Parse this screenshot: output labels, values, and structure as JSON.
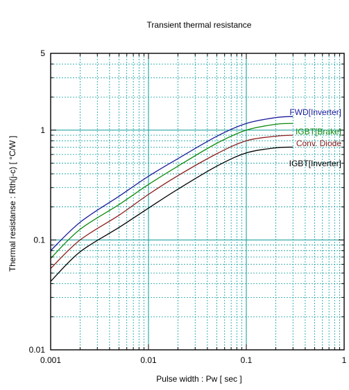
{
  "chart_data": {
    "type": "line",
    "title": "Transient thermal resistance",
    "xlabel": "Pulse width  :  Pw  [ sec ]",
    "ylabel": "Thermal resistanse  :  Rth(j-c)  [ °C/W ]",
    "x_scale": "log",
    "y_scale": "log",
    "xlim": [
      0.001,
      1
    ],
    "ylim": [
      0.01,
      5
    ],
    "grid": true,
    "x_ticks": [
      {
        "value": 0.001,
        "label": "0.001"
      },
      {
        "value": 0.01,
        "label": "0.01"
      },
      {
        "value": 0.1,
        "label": "0.1"
      },
      {
        "value": 1,
        "label": "1"
      }
    ],
    "y_ticks": [
      {
        "value": 0.01,
        "label": "0.01"
      },
      {
        "value": 0.1,
        "label": "0.1"
      },
      {
        "value": 1,
        "label": "1"
      },
      {
        "value": 5,
        "label": "5"
      }
    ],
    "colors": {
      "grid": "#0a9a9a",
      "axes": "#000000"
    },
    "series": [
      {
        "name": "FWD[Inverter]",
        "color": "#1c1c9c",
        "x": [
          0.001,
          0.002,
          0.005,
          0.01,
          0.02,
          0.05,
          0.1,
          0.2,
          0.3
        ],
        "y": [
          0.08,
          0.145,
          0.25,
          0.38,
          0.55,
          0.88,
          1.15,
          1.3,
          1.33
        ]
      },
      {
        "name": "IGBT[Brake]",
        "color": "#0e8a0e",
        "x": [
          0.001,
          0.002,
          0.005,
          0.01,
          0.02,
          0.05,
          0.1,
          0.2,
          0.3
        ],
        "y": [
          0.068,
          0.125,
          0.21,
          0.32,
          0.47,
          0.76,
          1.0,
          1.13,
          1.15
        ]
      },
      {
        "name": "Conv. Diode",
        "color": "#8c1c1c",
        "x": [
          0.001,
          0.002,
          0.005,
          0.01,
          0.02,
          0.05,
          0.1,
          0.2,
          0.3
        ],
        "y": [
          0.055,
          0.1,
          0.168,
          0.26,
          0.385,
          0.61,
          0.8,
          0.88,
          0.9
        ]
      },
      {
        "name": "IGBT[Inverter]",
        "color": "#000000",
        "x": [
          0.001,
          0.002,
          0.005,
          0.01,
          0.02,
          0.05,
          0.1,
          0.2,
          0.3
        ],
        "y": [
          0.042,
          0.078,
          0.13,
          0.195,
          0.29,
          0.47,
          0.62,
          0.69,
          0.7
        ]
      }
    ]
  }
}
